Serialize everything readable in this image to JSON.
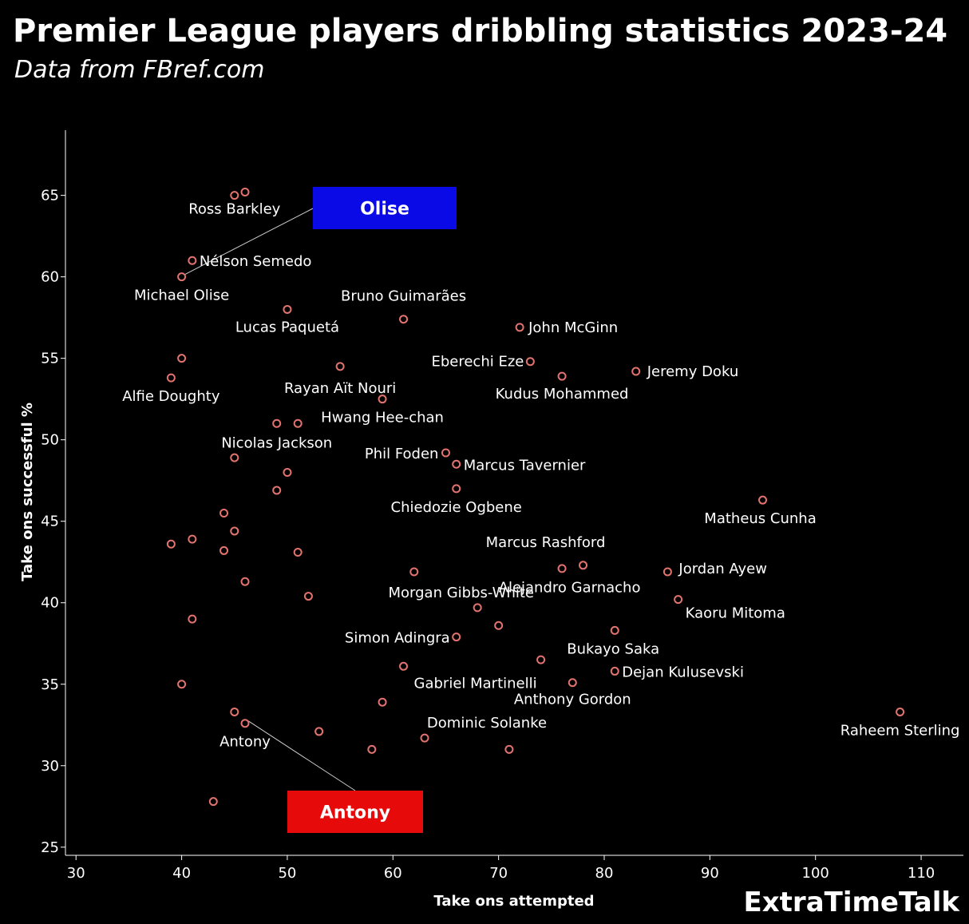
{
  "title": "Premier League players dribbling statistics 2023-24",
  "subtitle": "Data from FBref.com",
  "brand": "ExtraTimeTalk",
  "colors": {
    "background": "#000000",
    "point": "#e2736f",
    "olise_box": "#0a0ae6",
    "antony_box": "#e60a0a",
    "connector": "#cccccc"
  },
  "chart_data": {
    "type": "scatter",
    "title": "Premier League players dribbling statistics 2023-24",
    "xlabel": "Take ons attempted",
    "ylabel": "Take ons successful %",
    "xlim": [
      29,
      114
    ],
    "ylim": [
      24.5,
      69
    ],
    "xticks": [
      30,
      40,
      50,
      60,
      70,
      80,
      90,
      100,
      110
    ],
    "yticks": [
      25,
      30,
      35,
      40,
      45,
      50,
      55,
      60,
      65
    ],
    "grid": false,
    "points": [
      {
        "x": 46,
        "y": 65.2,
        "label": ""
      },
      {
        "x": 45,
        "y": 65,
        "label": "Ross Barkley"
      },
      {
        "x": 41,
        "y": 61,
        "label": "Nélson Semedo"
      },
      {
        "x": 40,
        "y": 60,
        "label": "Michael Olise"
      },
      {
        "x": 50,
        "y": 58,
        "label": "Lucas Paquetá"
      },
      {
        "x": 61,
        "y": 57.4,
        "label": "Bruno Guimarães"
      },
      {
        "x": 72,
        "y": 56.9,
        "label": "John McGinn"
      },
      {
        "x": 40,
        "y": 55,
        "label": ""
      },
      {
        "x": 73,
        "y": 54.8,
        "label": "Eberechi Eze"
      },
      {
        "x": 55,
        "y": 54.5,
        "label": "Rayan Aït Nouri"
      },
      {
        "x": 83,
        "y": 54.2,
        "label": "Jeremy Doku"
      },
      {
        "x": 76,
        "y": 53.9,
        "label": "Kudus Mohammed"
      },
      {
        "x": 39,
        "y": 53.8,
        "label": "Alfie Doughty"
      },
      {
        "x": 59,
        "y": 52.5,
        "label": "Hwang Hee-chan"
      },
      {
        "x": 49,
        "y": 51,
        "label": "Nicolas Jackson"
      },
      {
        "x": 51,
        "y": 51,
        "label": ""
      },
      {
        "x": 65,
        "y": 49.2,
        "label": "Phil Foden"
      },
      {
        "x": 45,
        "y": 48.9,
        "label": ""
      },
      {
        "x": 66,
        "y": 48.5,
        "label": "Marcus Tavernier"
      },
      {
        "x": 50,
        "y": 48,
        "label": ""
      },
      {
        "x": 66,
        "y": 47,
        "label": "Chiedozie Ogbene"
      },
      {
        "x": 49,
        "y": 46.9,
        "label": ""
      },
      {
        "x": 95,
        "y": 46.3,
        "label": "Matheus Cunha"
      },
      {
        "x": 44,
        "y": 45.5,
        "label": ""
      },
      {
        "x": 45,
        "y": 44.4,
        "label": ""
      },
      {
        "x": 41,
        "y": 43.9,
        "label": ""
      },
      {
        "x": 39,
        "y": 43.6,
        "label": ""
      },
      {
        "x": 44,
        "y": 43.2,
        "label": ""
      },
      {
        "x": 51,
        "y": 43.1,
        "label": ""
      },
      {
        "x": 78,
        "y": 42.3,
        "label": "Marcus Rashford"
      },
      {
        "x": 76,
        "y": 42.1,
        "label": ""
      },
      {
        "x": 62,
        "y": 41.9,
        "label": "Morgan Gibbs-White"
      },
      {
        "x": 86,
        "y": 41.9,
        "label": "Jordan Ayew"
      },
      {
        "x": 46,
        "y": 41.3,
        "label": ""
      },
      {
        "x": 52,
        "y": 40.4,
        "label": ""
      },
      {
        "x": 87,
        "y": 40.2,
        "label": "Kaoru Mitoma"
      },
      {
        "x": 68,
        "y": 39.7,
        "label": ""
      },
      {
        "x": 41,
        "y": 39,
        "label": ""
      },
      {
        "x": 70,
        "y": 38.6,
        "label": "Alejandro Garnacho"
      },
      {
        "x": 81,
        "y": 38.3,
        "label": "Bukayo Saka"
      },
      {
        "x": 66,
        "y": 37.9,
        "label": "Simon Adingra"
      },
      {
        "x": 74,
        "y": 36.5,
        "label": ""
      },
      {
        "x": 61,
        "y": 36.1,
        "label": "Gabriel Martinelli"
      },
      {
        "x": 81,
        "y": 35.8,
        "label": "Dejan Kulusevski"
      },
      {
        "x": 40,
        "y": 35,
        "label": ""
      },
      {
        "x": 77,
        "y": 35.1,
        "label": "Anthony Gordon"
      },
      {
        "x": 59,
        "y": 33.9,
        "label": ""
      },
      {
        "x": 45,
        "y": 33.3,
        "label": ""
      },
      {
        "x": 108,
        "y": 33.3,
        "label": "Raheem Sterling"
      },
      {
        "x": 46,
        "y": 32.6,
        "label": "Antony"
      },
      {
        "x": 53,
        "y": 32.1,
        "label": ""
      },
      {
        "x": 63,
        "y": 31.7,
        "label": "Dominic Solanke"
      },
      {
        "x": 58,
        "y": 31,
        "label": ""
      },
      {
        "x": 71,
        "y": 31,
        "label": ""
      },
      {
        "x": 43,
        "y": 27.8,
        "label": ""
      }
    ],
    "highlights": [
      {
        "name": "Olise",
        "point": "Michael Olise",
        "x": 40,
        "y": 60,
        "color": "#0a0ae6"
      },
      {
        "name": "Antony",
        "point": "Antony",
        "x": 46,
        "y": 32.6,
        "color": "#e60a0a"
      }
    ]
  }
}
